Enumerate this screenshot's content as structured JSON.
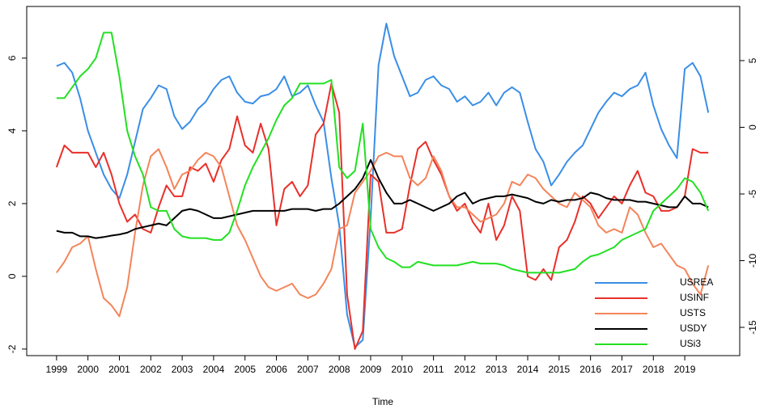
{
  "chart_data": {
    "type": "line",
    "xlabel": "Time",
    "x": [
      1999,
      1999.25,
      1999.5,
      1999.75,
      2000,
      2000.25,
      2000.5,
      2000.75,
      2001,
      2001.25,
      2001.5,
      2001.75,
      2002,
      2002.25,
      2002.5,
      2002.75,
      2003,
      2003.25,
      2003.5,
      2003.75,
      2004,
      2004.25,
      2004.5,
      2004.75,
      2005,
      2005.25,
      2005.5,
      2005.75,
      2006,
      2006.25,
      2006.5,
      2006.75,
      2007,
      2007.25,
      2007.5,
      2007.75,
      2008,
      2008.25,
      2008.5,
      2008.75,
      2009,
      2009.25,
      2009.5,
      2009.75,
      2010,
      2010.25,
      2010.5,
      2010.75,
      2011,
      2011.25,
      2011.5,
      2011.75,
      2012,
      2012.25,
      2012.5,
      2012.75,
      2013,
      2013.25,
      2013.5,
      2013.75,
      2014,
      2014.25,
      2014.5,
      2014.75,
      2015,
      2015.25,
      2015.5,
      2015.75,
      2016,
      2016.25,
      2016.5,
      2016.75,
      2017,
      2017.25,
      2017.5,
      2017.75,
      2018,
      2018.25,
      2018.5,
      2018.75,
      2019,
      2019.25,
      2019.5,
      2019.75
    ],
    "series": [
      {
        "name": "USREA",
        "color": "#3a8ee6",
        "values": [
          5.78,
          5.87,
          5.6,
          4.9,
          4.0,
          3.4,
          2.8,
          2.4,
          2.15,
          2.8,
          3.7,
          4.6,
          4.9,
          5.25,
          5.15,
          4.4,
          4.05,
          4.25,
          4.6,
          4.8,
          5.15,
          5.4,
          5.5,
          5.05,
          4.8,
          4.75,
          4.95,
          5.0,
          5.15,
          5.5,
          4.95,
          5.05,
          5.25,
          4.7,
          4.25,
          2.7,
          1.4,
          -1.05,
          -1.95,
          -1.75,
          1.6,
          5.8,
          6.95,
          6.05,
          5.5,
          4.95,
          5.05,
          5.4,
          5.5,
          5.25,
          5.15,
          4.8,
          4.95,
          4.7,
          4.8,
          5.05,
          4.7,
          5.05,
          5.2,
          5.05,
          4.25,
          3.5,
          3.15,
          2.5,
          2.8,
          3.15,
          3.4,
          3.6,
          4.05,
          4.5,
          4.8,
          5.05,
          4.95,
          5.15,
          5.25,
          5.6,
          4.7,
          4.05,
          3.6,
          3.25,
          5.7,
          5.87,
          5.5,
          4.5
        ]
      },
      {
        "name": "USINF",
        "color": "#e8302a",
        "values": [
          3.0,
          3.6,
          3.4,
          3.4,
          3.4,
          3.0,
          3.4,
          2.8,
          2.0,
          1.5,
          1.7,
          1.3,
          1.2,
          1.9,
          2.5,
          2.2,
          2.2,
          3.0,
          2.9,
          3.1,
          2.6,
          3.2,
          3.5,
          4.4,
          3.6,
          3.4,
          4.2,
          3.5,
          1.4,
          2.4,
          2.6,
          2.2,
          2.5,
          3.9,
          4.2,
          5.3,
          4.5,
          -0.5,
          -2.0,
          -1.5,
          2.8,
          2.6,
          1.2,
          1.2,
          1.3,
          2.5,
          3.5,
          3.7,
          3.2,
          2.8,
          2.2,
          1.8,
          2.0,
          1.5,
          1.2,
          2.0,
          1.0,
          1.4,
          2.2,
          1.8,
          0.0,
          -0.1,
          0.2,
          -0.1,
          0.8,
          1.0,
          1.5,
          2.2,
          2.0,
          1.6,
          1.9,
          2.2,
          2.0,
          2.5,
          2.9,
          2.3,
          2.2,
          1.8,
          1.8,
          1.9,
          2.2,
          3.5,
          3.4,
          3.4
        ]
      },
      {
        "name": "USTS",
        "color": "#f4845a",
        "values": [
          0.1,
          0.4,
          0.8,
          0.9,
          1.1,
          0.2,
          -0.6,
          -0.8,
          -1.1,
          -0.3,
          1.2,
          2.5,
          3.3,
          3.5,
          3.0,
          2.4,
          2.8,
          2.9,
          3.2,
          3.4,
          3.3,
          3.0,
          2.2,
          1.4,
          1.0,
          0.5,
          0.0,
          -0.3,
          -0.4,
          -0.3,
          -0.2,
          -0.5,
          -0.6,
          -0.5,
          -0.2,
          0.2,
          1.3,
          1.4,
          2.3,
          2.6,
          2.9,
          3.3,
          3.4,
          3.3,
          3.3,
          2.7,
          2.5,
          2.7,
          3.3,
          2.9,
          2.2,
          1.9,
          1.9,
          1.7,
          1.5,
          1.6,
          1.7,
          2.0,
          2.6,
          2.5,
          2.8,
          2.7,
          2.4,
          2.2,
          2.0,
          1.9,
          2.3,
          2.1,
          1.9,
          1.4,
          1.2,
          1.3,
          1.2,
          1.9,
          1.7,
          1.2,
          0.8,
          0.9,
          0.6,
          0.3,
          0.2,
          -0.2,
          -0.5,
          0.3
        ]
      },
      {
        "name": "USDY",
        "color": "#000000",
        "values": [
          1.25,
          1.2,
          1.2,
          1.1,
          1.1,
          1.05,
          1.08,
          1.12,
          1.15,
          1.2,
          1.3,
          1.35,
          1.4,
          1.45,
          1.4,
          1.6,
          1.8,
          1.85,
          1.8,
          1.7,
          1.6,
          1.6,
          1.65,
          1.7,
          1.75,
          1.8,
          1.8,
          1.8,
          1.8,
          1.8,
          1.85,
          1.85,
          1.85,
          1.8,
          1.85,
          1.85,
          2.0,
          2.2,
          2.4,
          2.7,
          3.2,
          2.7,
          2.3,
          2.0,
          2.0,
          2.1,
          2.0,
          1.9,
          1.8,
          1.9,
          2.0,
          2.2,
          2.3,
          2.0,
          2.1,
          2.15,
          2.2,
          2.2,
          2.25,
          2.2,
          2.15,
          2.05,
          2.0,
          2.1,
          2.05,
          2.1,
          2.1,
          2.15,
          2.3,
          2.25,
          2.15,
          2.1,
          2.1,
          2.1,
          2.05,
          2.05,
          2.0,
          1.95,
          1.9,
          1.9,
          2.2,
          2.0,
          2.0,
          1.9
        ]
      },
      {
        "name": "USi3",
        "color": "#22e022",
        "values": [
          4.9,
          4.9,
          5.2,
          5.5,
          5.7,
          6.0,
          6.7,
          6.7,
          5.5,
          4.0,
          3.3,
          2.8,
          1.9,
          1.8,
          1.8,
          1.3,
          1.1,
          1.05,
          1.05,
          1.05,
          1.0,
          1.0,
          1.2,
          1.8,
          2.5,
          3.0,
          3.4,
          3.8,
          4.3,
          4.7,
          4.9,
          5.3,
          5.3,
          5.3,
          5.3,
          5.4,
          3.0,
          2.7,
          2.9,
          4.2,
          1.3,
          0.8,
          0.5,
          0.4,
          0.25,
          0.25,
          0.4,
          0.35,
          0.3,
          0.3,
          0.3,
          0.3,
          0.35,
          0.4,
          0.35,
          0.35,
          0.35,
          0.3,
          0.2,
          0.15,
          0.1,
          0.1,
          0.1,
          0.1,
          0.1,
          0.15,
          0.2,
          0.4,
          0.55,
          0.6,
          0.7,
          0.8,
          1.0,
          1.1,
          1.2,
          1.3,
          1.8,
          2.0,
          2.2,
          2.4,
          2.7,
          2.6,
          2.3,
          1.8
        ]
      }
    ],
    "xlim": [
      1998.05,
      2020.75
    ],
    "xticks": [
      1999,
      2000,
      2001,
      2002,
      2003,
      2004,
      2005,
      2006,
      2007,
      2008,
      2009,
      2010,
      2011,
      2012,
      2013,
      2014,
      2015,
      2016,
      2017,
      2018,
      2019
    ],
    "ylim": [
      -2.18,
      7.42
    ],
    "yticks": [
      -2,
      0,
      2,
      4,
      6
    ],
    "y2lim": [
      -17.12,
      9.06
    ],
    "y2ticks": [
      -15,
      -10,
      -5,
      0,
      5
    ],
    "legend": "bottom-right",
    "grid": false
  }
}
